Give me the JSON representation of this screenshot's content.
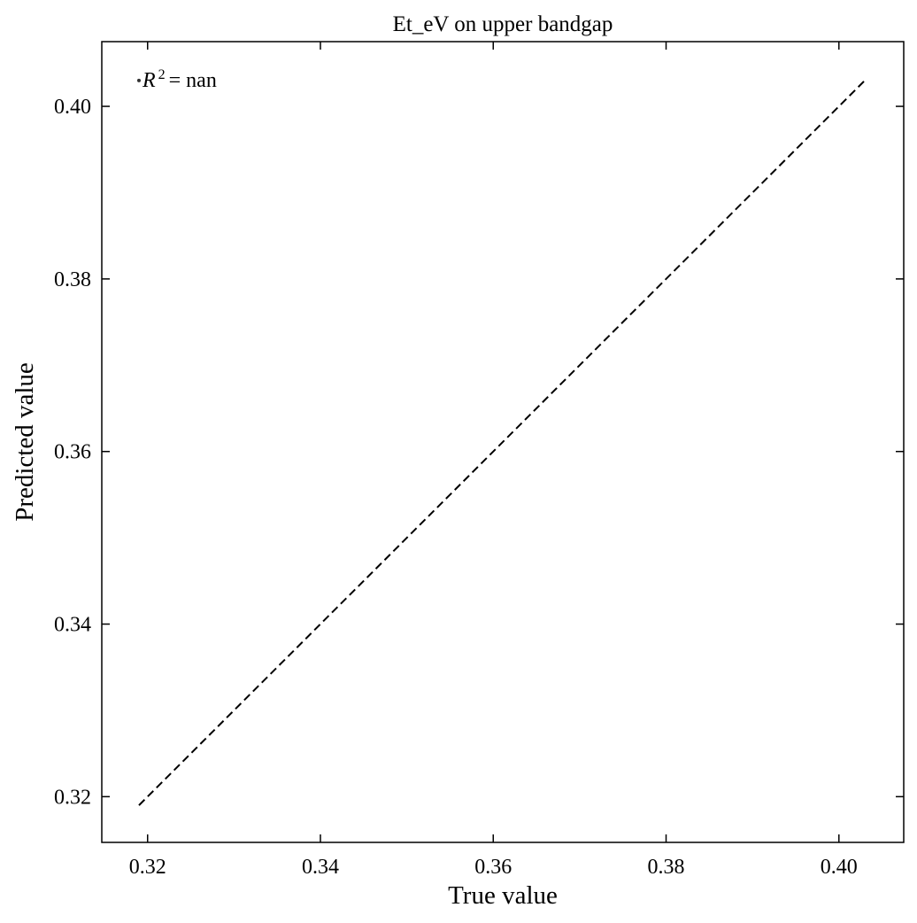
{
  "chart_data": {
    "type": "scatter",
    "title": "Et_eV on upper bandgap",
    "xlabel": "True value",
    "ylabel": "Predicted value",
    "xlim": [
      0.3147,
      0.4075
    ],
    "ylim": [
      0.3147,
      0.4075
    ],
    "xticks": [
      0.32,
      0.34,
      0.36,
      0.38,
      0.4
    ],
    "yticks": [
      0.32,
      0.34,
      0.36,
      0.38,
      0.4
    ],
    "xtick_labels": [
      "0.32",
      "0.34",
      "0.36",
      "0.38",
      "0.40"
    ],
    "ytick_labels": [
      "0.32",
      "0.34",
      "0.36",
      "0.38",
      "0.40"
    ],
    "annotation": {
      "r2_symbol": "R",
      "r2_superscript": "2",
      "r2_equals": "=",
      "r2_value": "nan",
      "text_anchor": [
        0.319,
        0.403
      ]
    },
    "points": [
      {
        "x": 0.319,
        "y": 0.403
      }
    ],
    "reference_line": {
      "style": "dashed",
      "color": "#000000",
      "x": [
        0.319,
        0.403
      ],
      "y": [
        0.319,
        0.403
      ]
    },
    "grid": false,
    "tick_direction": "in",
    "mirror_ticks": true
  }
}
